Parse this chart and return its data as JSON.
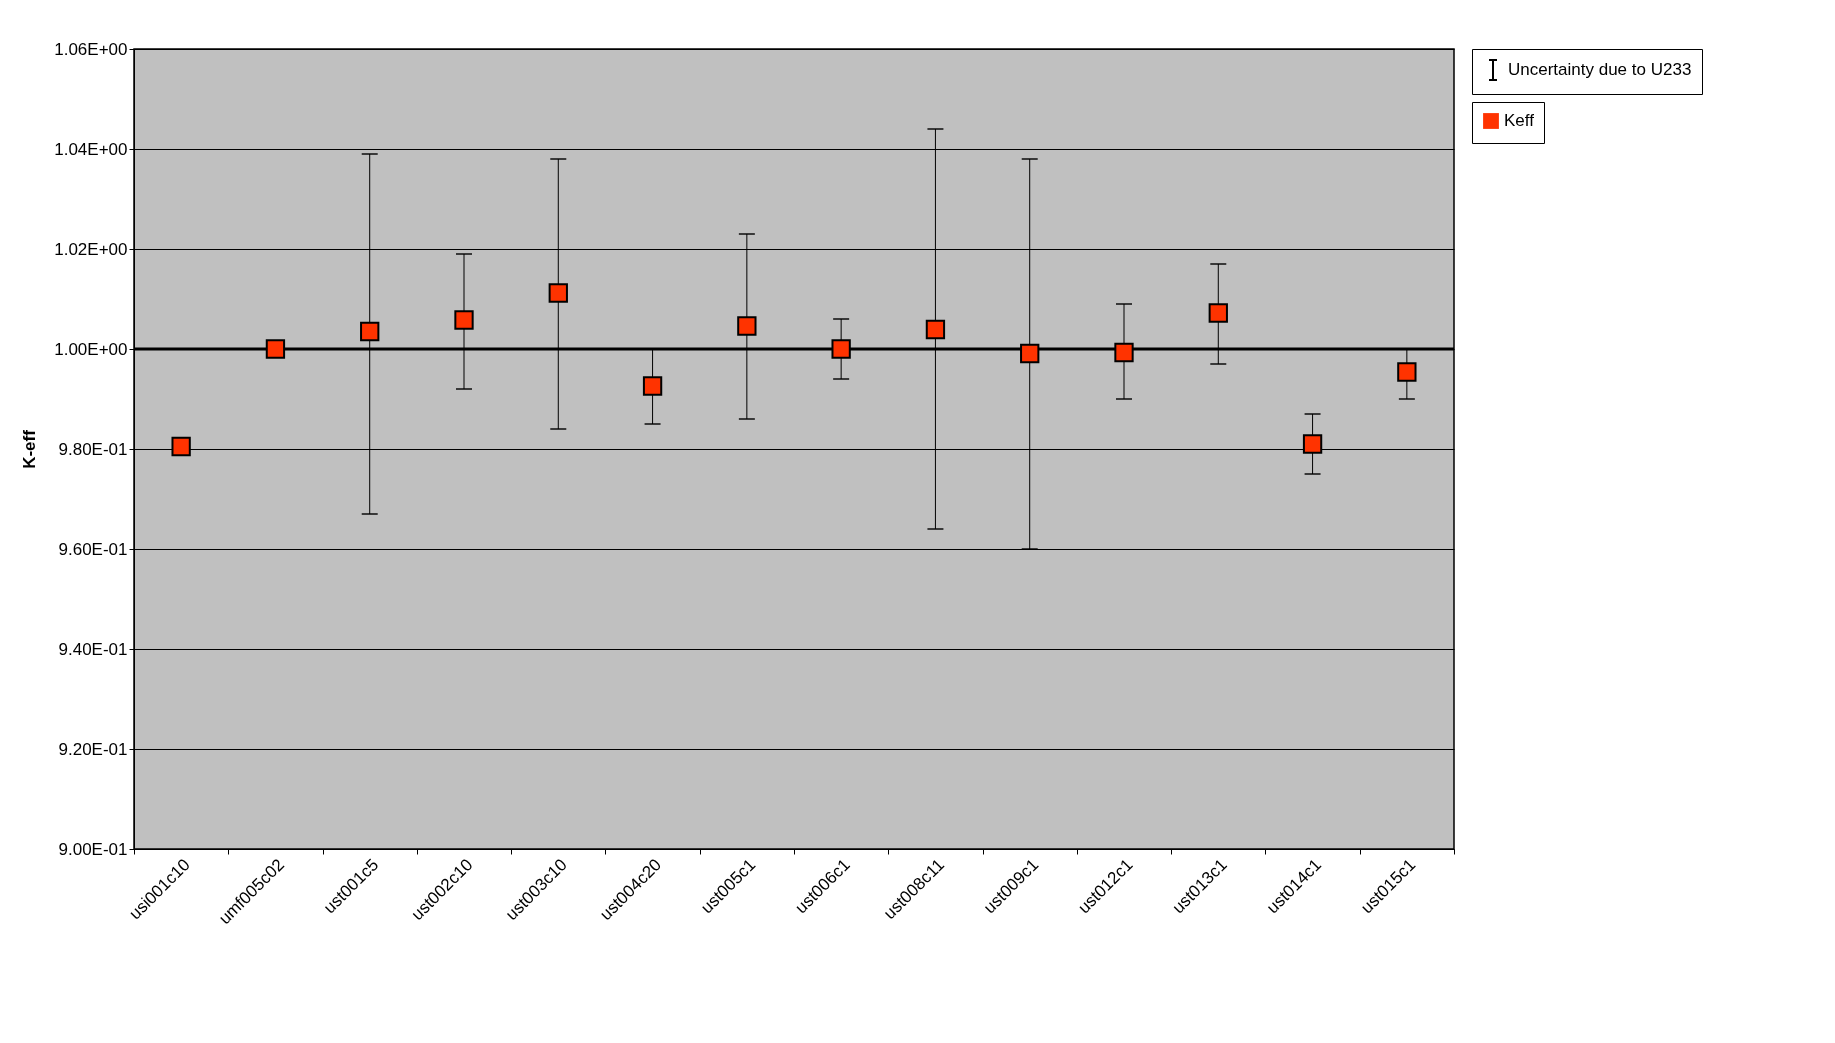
{
  "chart_data": {
    "type": "scatter",
    "ylabel": "K-eff",
    "categories": [
      "usi001c10",
      "umf005c02",
      "ust001c5",
      "ust002c10",
      "ust003c10",
      "ust004c20",
      "ust005c1",
      "ust006c1",
      "ust008c11",
      "ust009c1",
      "ust012c1",
      "ust013c1",
      "ust014c1",
      "ust015c1"
    ],
    "series": [
      {
        "name": "Keff",
        "color": "#ff3300",
        "values": [
          0.9805,
          1.0,
          1.0035,
          1.0058,
          1.0112,
          0.9926,
          1.0046,
          1.0,
          1.0039,
          0.9991,
          0.9993,
          1.0072,
          0.981,
          0.9954
        ],
        "errors": [
          [
            0.979,
            0.982
          ],
          null,
          [
            0.967,
            1.039
          ],
          [
            0.992,
            1.019
          ],
          [
            0.984,
            1.038
          ],
          [
            0.985,
            1.0
          ],
          [
            0.986,
            1.023
          ],
          [
            0.994,
            1.006
          ],
          [
            0.964,
            1.044
          ],
          [
            0.96,
            1.038
          ],
          [
            0.99,
            1.009
          ],
          [
            0.997,
            1.017
          ],
          [
            0.975,
            0.987
          ],
          [
            0.99,
            1.0
          ]
        ]
      }
    ],
    "annotations": [
      "Uncertainty due to U233"
    ],
    "marker": "square",
    "legend": "right",
    "grid": "y",
    "ylim": [
      0.9,
      1.06
    ],
    "yticks": [
      {
        "value": 0.9,
        "label": "9.00E-01"
      },
      {
        "value": 0.92,
        "label": "9.20E-01"
      },
      {
        "value": 0.94,
        "label": "9.40E-01"
      },
      {
        "value": 0.96,
        "label": "9.60E-01"
      },
      {
        "value": 0.98,
        "label": "9.80E-01"
      },
      {
        "value": 1.0,
        "label": "1.00E+00"
      },
      {
        "value": 1.02,
        "label": "1.02E+00"
      },
      {
        "value": 1.04,
        "label": "1.04E+00"
      },
      {
        "value": 1.06,
        "label": "1.06E+00"
      }
    ],
    "ref_lines": [
      {
        "axis": "y",
        "value": 1.0,
        "color": "#000000"
      }
    ]
  }
}
